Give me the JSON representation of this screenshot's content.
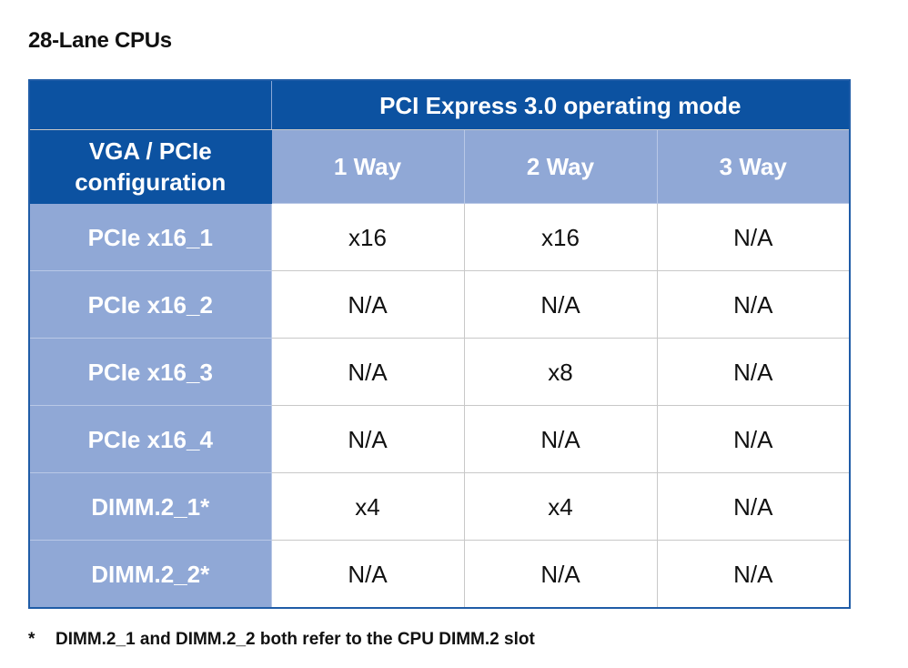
{
  "title": "28-Lane CPUs",
  "table": {
    "mode_header": "PCI Express 3.0 operating mode",
    "config_header_line1": "VGA / PCIe",
    "config_header_line2": "configuration",
    "columns": [
      "1 Way",
      "2 Way",
      "3 Way"
    ],
    "rows": [
      {
        "label": "PCIe x16_1",
        "values": [
          "x16",
          "x16",
          "N/A"
        ]
      },
      {
        "label": "PCIe x16_2",
        "values": [
          "N/A",
          "N/A",
          "N/A"
        ]
      },
      {
        "label": "PCIe x16_3",
        "values": [
          "N/A",
          "x8",
          "N/A"
        ]
      },
      {
        "label": "PCIe x16_4",
        "values": [
          "N/A",
          "N/A",
          "N/A"
        ]
      },
      {
        "label": "DIMM.2_1*",
        "values": [
          "x4",
          "x4",
          "N/A"
        ]
      },
      {
        "label": "DIMM.2_2*",
        "values": [
          "N/A",
          "N/A",
          "N/A"
        ]
      }
    ]
  },
  "footnote": {
    "marker": "*",
    "text": "DIMM.2_1 and DIMM.2_2 both refer to the CPU DIMM.2 slot"
  },
  "colors": {
    "header_dark_blue": "#0c52a1",
    "header_light_blue": "#90a8d6",
    "border_blue": "#1f5ca7"
  }
}
